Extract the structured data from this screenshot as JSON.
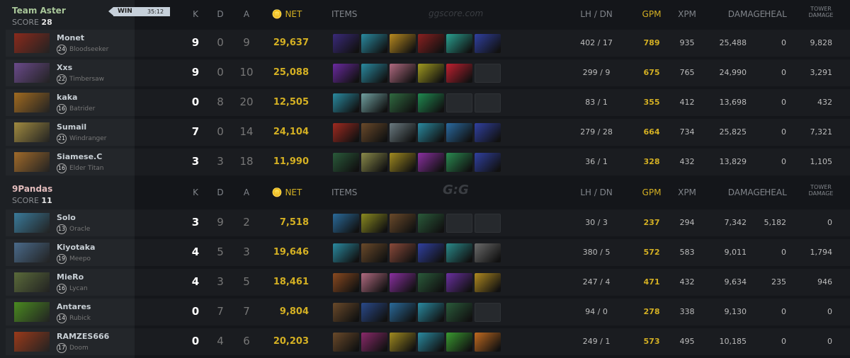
{
  "match": {
    "result": "WIN",
    "duration": "35:12",
    "watermark": "ggscore.com",
    "watermark2": "G:G"
  },
  "columns": {
    "k": "K",
    "d": "D",
    "a": "A",
    "net": "NET",
    "items": "ITEMS",
    "lh": "LH  /  DN",
    "gpm": "GPM",
    "xpm": "XPM",
    "damage": "DAMAGE",
    "heal": "HEAL",
    "tower": "TOWER DAMAGE"
  },
  "colors": {
    "gold": "#d4b023",
    "teamA": "#a9c79a",
    "teamB": "#e2bcbc"
  },
  "teams": [
    {
      "name": "Team Aster",
      "score_label": "SCORE",
      "score": "28",
      "players": [
        {
          "name": "Monet",
          "level": "24",
          "hero": "Bloodseeker",
          "portrait": "#8a2a1c",
          "k": "9",
          "d": "0",
          "a": "9",
          "net": "29,637",
          "lh": "402  /  17",
          "gpm": "789",
          "xpm": "935",
          "damage": "25,488",
          "heal": "0",
          "tower": "9,828",
          "items": [
            "#3a2a7a",
            "#2a8aa0",
            "#b88a20",
            "#8a2020",
            "#2aa090",
            "#3040a0"
          ]
        },
        {
          "name": "Xxs",
          "level": "22",
          "hero": "Timbersaw",
          "portrait": "#6a4a8a",
          "k": "9",
          "d": "0",
          "a": "10",
          "net": "25,088",
          "lh": "299  /  9",
          "gpm": "675",
          "xpm": "765",
          "damage": "24,990",
          "heal": "0",
          "tower": "3,291",
          "items": [
            "#6a2aa0",
            "#2a8aa0",
            "#b06a80",
            "#a09a20",
            "#c02030",
            null
          ]
        },
        {
          "name": "kaka",
          "level": "16",
          "hero": "Batrider",
          "portrait": "#a06a20",
          "k": "0",
          "d": "8",
          "a": "20",
          "net": "12,505",
          "lh": "83  /  1",
          "gpm": "355",
          "xpm": "412",
          "damage": "13,698",
          "heal": "0",
          "tower": "432",
          "items": [
            "#2a8aa0",
            "#70a0a0",
            "#306a40",
            "#208a50",
            null,
            null
          ]
        },
        {
          "name": "Sumail",
          "level": "21",
          "hero": "Windranger",
          "portrait": "#a08a40",
          "k": "7",
          "d": "0",
          "a": "14",
          "net": "24,104",
          "lh": "279  /  28",
          "gpm": "664",
          "xpm": "734",
          "damage": "25,825",
          "heal": "0",
          "tower": "7,321",
          "items": [
            "#a02a20",
            "#6a4a2a",
            "#6a7a80",
            "#2a8aa0",
            "#2a6aa0",
            "#3040a0"
          ]
        },
        {
          "name": "Siamese.C",
          "level": "16",
          "hero": "Elder Titan",
          "portrait": "#a06a2a",
          "k": "3",
          "d": "3",
          "a": "18",
          "net": "11,990",
          "lh": "36  /  1",
          "gpm": "328",
          "xpm": "432",
          "damage": "13,829",
          "heal": "0",
          "tower": "1,105",
          "items": [
            "#2a5a3a",
            "#8a8a4a",
            "#a08a20",
            "#8a30a0",
            "#2a8a50",
            "#3040a0"
          ]
        }
      ]
    },
    {
      "name": "9Pandas",
      "score_label": "SCORE",
      "score": "11",
      "players": [
        {
          "name": "Solo",
          "level": "13",
          "hero": "Oracle",
          "portrait": "#3a7a9a",
          "k": "3",
          "d": "9",
          "a": "2",
          "net": "7,518",
          "lh": "30  /  3",
          "gpm": "237",
          "xpm": "294",
          "damage": "7,342",
          "heal": "5,182",
          "tower": "0",
          "items": [
            "#2a6a9a",
            "#8a8a20",
            "#6a4a2a",
            "#2a5a3a",
            null,
            null
          ]
        },
        {
          "name": "Kiyotaka",
          "level": "19",
          "hero": "Meepo",
          "portrait": "#4a6a8a",
          "k": "4",
          "d": "5",
          "a": "3",
          "net": "19,646",
          "lh": "380  /  5",
          "gpm": "572",
          "xpm": "583",
          "damage": "9,011",
          "heal": "0",
          "tower": "1,794",
          "items": [
            "#2a8aa0",
            "#6a4a2a",
            "#8a4a3a",
            "#3040a0",
            "#2a8a8a",
            "#6a6a6a"
          ]
        },
        {
          "name": "MieRo",
          "level": "16",
          "hero": "Lycan",
          "portrait": "#5a6a3a",
          "k": "4",
          "d": "3",
          "a": "5",
          "net": "18,461",
          "lh": "247  /  4",
          "gpm": "471",
          "xpm": "432",
          "damage": "9,634",
          "heal": "235",
          "tower": "946",
          "items": [
            "#8a4a20",
            "#b06a80",
            "#8a30a0",
            "#2a5a3a",
            "#6a30a0",
            "#b08a20"
          ]
        },
        {
          "name": "Antares",
          "level": "14",
          "hero": "Rubick",
          "portrait": "#4a8a20",
          "k": "0",
          "d": "7",
          "a": "7",
          "net": "9,804",
          "lh": "94  /  0",
          "gpm": "278",
          "xpm": "338",
          "damage": "9,130",
          "heal": "0",
          "tower": "0",
          "items": [
            "#6a4a2a",
            "#2a4a8a",
            "#2a6a9a",
            "#2a8aa0",
            "#2a5a3a",
            null
          ]
        },
        {
          "name": "RAMZES666",
          "level": "17",
          "hero": "Doom",
          "portrait": "#9a3a1a",
          "k": "0",
          "d": "4",
          "a": "6",
          "net": "20,203",
          "lh": "249  /  1",
          "gpm": "573",
          "xpm": "495",
          "damage": "10,185",
          "heal": "0",
          "tower": "0",
          "items": [
            "#6a4a2a",
            "#8a2a6a",
            "#a08a20",
            "#2a8aa0",
            "#3a9a30",
            "#c06a20"
          ]
        }
      ]
    }
  ]
}
